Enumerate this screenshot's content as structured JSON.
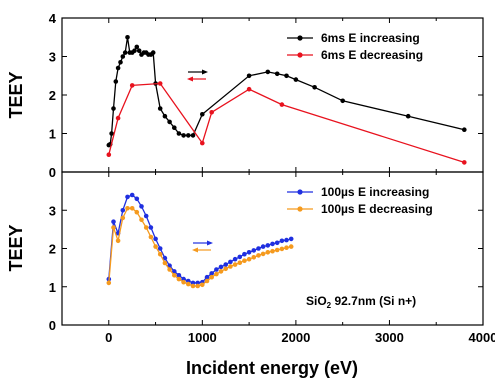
{
  "chart_data": [
    {
      "type": "line",
      "panel": "top",
      "title": "",
      "xlabel": "",
      "ylabel": "TEEY",
      "xlim": [
        -500,
        4000
      ],
      "ylim": [
        0,
        4
      ],
      "xticks": [
        "0",
        "1000",
        "2000",
        "3000",
        "4000"
      ],
      "xticks_labeled": false,
      "yticks": [
        "0",
        "1",
        "2",
        "3",
        "4"
      ],
      "legend_position": "top-right",
      "grid": false,
      "series": [
        {
          "name": "6ms E increasing",
          "color": "#000000",
          "marker": "circle",
          "x": [
            0,
            15,
            30,
            50,
            75,
            100,
            125,
            150,
            175,
            200,
            225,
            250,
            275,
            300,
            325,
            350,
            375,
            400,
            425,
            450,
            475,
            500,
            550,
            600,
            650,
            700,
            750,
            800,
            850,
            900,
            1000,
            1500,
            1700,
            1800,
            1900,
            2000,
            2200,
            2500,
            3200,
            3800
          ],
          "y": [
            0.7,
            0.72,
            1.0,
            1.65,
            2.35,
            2.7,
            2.85,
            3.0,
            3.1,
            3.5,
            3.1,
            3.1,
            3.15,
            3.25,
            3.15,
            3.05,
            3.1,
            3.1,
            3.05,
            3.05,
            3.1,
            2.3,
            1.65,
            1.45,
            1.3,
            1.15,
            1.0,
            0.95,
            0.95,
            0.95,
            1.5,
            2.5,
            2.6,
            2.55,
            2.5,
            2.4,
            2.2,
            1.85,
            1.45,
            1.1
          ]
        },
        {
          "name": "6ms E decreasing",
          "color": "#e8121e",
          "marker": "circle",
          "x": [
            0,
            100,
            250,
            550,
            1000,
            1100,
            1500,
            1850,
            3800
          ],
          "y": [
            0.45,
            1.4,
            2.25,
            2.3,
            0.75,
            1.55,
            2.15,
            1.75,
            0.25
          ]
        }
      ]
    },
    {
      "type": "line",
      "panel": "bottom",
      "title": "",
      "xlabel": "Incident energy (eV)",
      "ylabel": "TEEY",
      "xlim": [
        -500,
        4000
      ],
      "ylim": [
        0,
        4
      ],
      "xticks": [
        "0",
        "1000",
        "2000",
        "3000",
        "4000"
      ],
      "yticks": [
        "0",
        "1",
        "2",
        "3"
      ],
      "legend_position": "top-right",
      "annotation": {
        "base": "SiO",
        "sub": "2",
        "rest": " 92.7nm (Si n+)"
      },
      "grid": false,
      "series": [
        {
          "name": "100µs E increasing",
          "color": "#1f2fe0",
          "marker": "circle",
          "x": [
            0,
            50,
            100,
            150,
            200,
            250,
            300,
            350,
            400,
            450,
            500,
            550,
            600,
            650,
            700,
            750,
            800,
            850,
            900,
            950,
            1000,
            1050,
            1100,
            1150,
            1200,
            1250,
            1300,
            1350,
            1400,
            1450,
            1500,
            1550,
            1600,
            1650,
            1700,
            1750,
            1800,
            1850,
            1900,
            1950
          ],
          "y": [
            1.2,
            2.7,
            2.4,
            3.0,
            3.35,
            3.4,
            3.3,
            3.1,
            2.85,
            2.55,
            2.25,
            2.0,
            1.75,
            1.55,
            1.4,
            1.3,
            1.2,
            1.15,
            1.1,
            1.1,
            1.12,
            1.25,
            1.35,
            1.45,
            1.52,
            1.58,
            1.65,
            1.72,
            1.78,
            1.85,
            1.9,
            1.95,
            2.0,
            2.05,
            2.08,
            2.12,
            2.15,
            2.2,
            2.22,
            2.25
          ]
        },
        {
          "name": "100µs E decreasing",
          "color": "#f59a1e",
          "marker": "circle",
          "x": [
            0,
            50,
            100,
            150,
            200,
            250,
            300,
            350,
            400,
            450,
            500,
            550,
            600,
            650,
            700,
            750,
            800,
            850,
            900,
            950,
            1000,
            1050,
            1100,
            1150,
            1200,
            1250,
            1300,
            1350,
            1400,
            1450,
            1500,
            1550,
            1600,
            1650,
            1700,
            1750,
            1800,
            1850,
            1900,
            1950
          ],
          "y": [
            1.1,
            2.55,
            2.2,
            2.8,
            3.05,
            3.05,
            2.95,
            2.75,
            2.55,
            2.3,
            2.05,
            1.85,
            1.62,
            1.45,
            1.3,
            1.2,
            1.12,
            1.07,
            1.02,
            1.02,
            1.05,
            1.15,
            1.25,
            1.33,
            1.4,
            1.47,
            1.53,
            1.58,
            1.63,
            1.68,
            1.72,
            1.77,
            1.82,
            1.86,
            1.9,
            1.93,
            1.96,
            1.99,
            2.02,
            2.05
          ]
        }
      ]
    }
  ]
}
